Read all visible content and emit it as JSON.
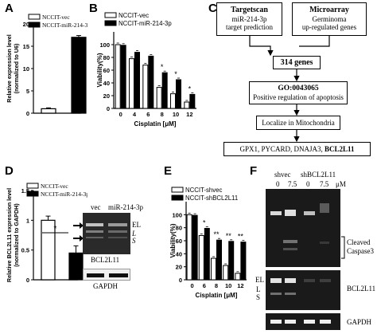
{
  "panels": {
    "A": {
      "label": "A"
    },
    "B": {
      "label": "B"
    },
    "C": {
      "label": "C"
    },
    "D": {
      "label": "D"
    },
    "E": {
      "label": "E"
    },
    "F": {
      "label": "F"
    }
  },
  "chart_data": [
    {
      "id": "A",
      "type": "bar",
      "categories": [
        "NCCIT-vec",
        "NCCIT-miR-214-3p"
      ],
      "values": [
        1,
        17
      ],
      "errors": [
        0.2,
        0.4
      ],
      "ylabel": "Relative expression level (normalized to U6)",
      "yticks": [
        0,
        5,
        10,
        15,
        20
      ],
      "ylim": [
        0,
        20
      ],
      "legend": [
        "NCCIT-vec",
        "NCCIT-miR-214-3p"
      ],
      "significance": "**",
      "colors": [
        "#ffffff",
        "#000000"
      ]
    },
    {
      "id": "B",
      "type": "bar",
      "categories": [
        "0",
        "4",
        "6",
        "8",
        "10",
        "12"
      ],
      "series": [
        {
          "name": "NCCIT-vec",
          "values": [
            100,
            78,
            68,
            33,
            23,
            10
          ]
        },
        {
          "name": "NCCIT-miR-214-3p",
          "values": [
            99,
            88,
            82,
            56,
            45,
            22
          ]
        }
      ],
      "significance": [
        "",
        "",
        "",
        "*",
        "*",
        "*"
      ],
      "xlabel": "Cisplatin [μM]",
      "ylabel": "Viability(%)",
      "yticks": [
        0,
        20,
        40,
        60,
        80,
        100
      ],
      "ylim": [
        0,
        120
      ]
    },
    {
      "id": "D",
      "type": "bar",
      "categories": [
        "NCCIT-vec",
        "NCCIT-miR-214-3p"
      ],
      "values": [
        1.0,
        0.45
      ],
      "errors": [
        0.07,
        0.12
      ],
      "ylabel": "Relative BCL2L11 expression level (normalized to GAPDH)",
      "yticks": [
        0.0,
        0.5,
        1.0,
        1.5
      ],
      "ylim": [
        0,
        1.5
      ],
      "legend": [
        "NCCIT-vec",
        "NCCIT-miR-214-3p"
      ],
      "significance": "*"
    },
    {
      "id": "E",
      "type": "bar",
      "categories": [
        "0",
        "6",
        "8",
        "10",
        "12"
      ],
      "series": [
        {
          "name": "NCCIT-shvec",
          "values": [
            100,
            68,
            33,
            22,
            10
          ]
        },
        {
          "name": "NCCIT-shBCL2L11",
          "values": [
            99,
            79,
            61,
            59,
            58
          ]
        }
      ],
      "significance": [
        "",
        "*",
        "**",
        "**",
        "**"
      ],
      "xlabel": "Cisplatin [μM]",
      "ylabel": "Viability(%)",
      "yticks": [
        0,
        20,
        40,
        60,
        80,
        100
      ],
      "ylim": [
        0,
        120
      ]
    }
  ],
  "flowchart": {
    "box1_title": "Targetscan",
    "box1_line1": "miR-214-3p",
    "box1_line2": "target prediction",
    "box2_title": "Microarray",
    "box2_line1": "Germinoma",
    "box2_line2": "up-regulated genes",
    "box3": "314 genes",
    "box4_title": "GO:0043065",
    "box4_line1": "Positive regulation of apoptosis",
    "box5": "Localize in Mitochondria",
    "box6_plain": "GPX1, PYCARD, DNAJA3,",
    "box6_bold": "BCL2L11"
  },
  "blotD": {
    "col1": "vec",
    "col2": "miR-214-3p",
    "band_el": "EL",
    "band_l": "L",
    "band_s": "S",
    "protein": "BCL2L11",
    "loading": "GAPDH"
  },
  "blotF": {
    "group1": "shvec",
    "group2": "shBCL2L11",
    "doses": [
      "0",
      "7.5",
      "0",
      "7.5"
    ],
    "unit": "μM",
    "cleaved_line1": "Cleaved",
    "cleaved_line2": "Caspase3",
    "band_el": "EL",
    "band_l": "L",
    "band_s": "S",
    "protein": "BCL2L11",
    "loading": "GAPDH"
  }
}
